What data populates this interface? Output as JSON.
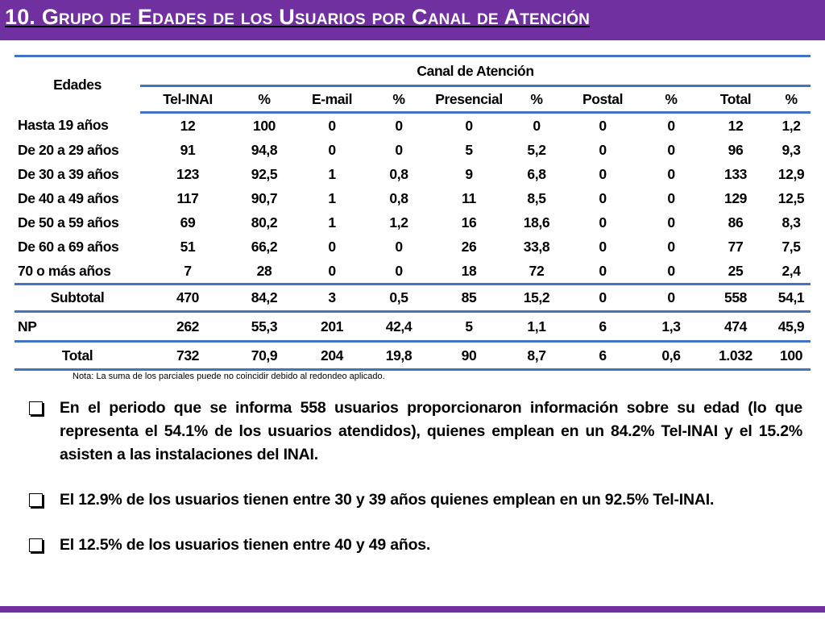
{
  "header": {
    "title": "10. Grupo de  Edades de los Usuarios por Canal de Atención"
  },
  "table": {
    "age_header": "Edades",
    "group_header": "Canal de Atención",
    "columns": [
      "Tel-INAI",
      "%",
      "E-mail",
      "%",
      "Presencial",
      "%",
      "Postal",
      "%",
      "Total",
      "%"
    ],
    "rows": [
      {
        "label": "Hasta 19 años",
        "values": [
          "12",
          "100",
          "0",
          "0",
          "0",
          "0",
          "0",
          "0",
          "12",
          "1,2"
        ]
      },
      {
        "label": "De 20 a 29 años",
        "values": [
          "91",
          "94,8",
          "0",
          "0",
          "5",
          "5,2",
          "0",
          "0",
          "96",
          "9,3"
        ]
      },
      {
        "label": "De 30 a 39 años",
        "values": [
          "123",
          "92,5",
          "1",
          "0,8",
          "9",
          "6,8",
          "0",
          "0",
          "133",
          "12,9"
        ]
      },
      {
        "label": "De 40 a 49 años",
        "values": [
          "117",
          "90,7",
          "1",
          "0,8",
          "11",
          "8,5",
          "0",
          "0",
          "129",
          "12,5"
        ]
      },
      {
        "label": "De 50 a 59 años",
        "values": [
          "69",
          "80,2",
          "1",
          "1,2",
          "16",
          "18,6",
          "0",
          "0",
          "86",
          "8,3"
        ]
      },
      {
        "label": "De 60 a 69 años",
        "values": [
          "51",
          "66,2",
          "0",
          "0",
          "26",
          "33,8",
          "0",
          "0",
          "77",
          "7,5"
        ]
      },
      {
        "label": "70 o más años",
        "values": [
          "7",
          "28",
          "0",
          "0",
          "18",
          "72",
          "0",
          "0",
          "25",
          "2,4"
        ]
      }
    ],
    "subtotal": {
      "label": "Subtotal",
      "values": [
        "470",
        "84,2",
        "3",
        "0,5",
        "85",
        "15,2",
        "0",
        "0",
        "558",
        "54,1"
      ]
    },
    "np": {
      "label": "NP",
      "values": [
        "262",
        "55,3",
        "201",
        "42,4",
        "5",
        "1,1",
        "6",
        "1,3",
        "474",
        "45,9"
      ]
    },
    "total": {
      "label": "Total",
      "values": [
        "732",
        "70,9",
        "204",
        "19,8",
        "90",
        "8,7",
        "6",
        "0,6",
        "1.032",
        "100"
      ]
    }
  },
  "note": "Nota: La suma de los parciales puede no coincidir debido al redondeo aplicado.",
  "bullets": [
    "En el periodo que se informa 558 usuarios proporcionaron información sobre su edad (lo que representa el 54.1% de los usuarios atendidos),  quienes emplean en un 84.2% Tel-INAI y el 15.2% asisten a las instalaciones del INAI.",
    "El 12.9% de los usuarios tienen entre 30 y 39 años quienes emplean en un 92.5% Tel-INAI.",
    "El 12.5% de los usuarios tienen entre 40 y 49 años."
  ],
  "colors": {
    "accent": "#7030a0",
    "table_rule": "#4472c4"
  }
}
